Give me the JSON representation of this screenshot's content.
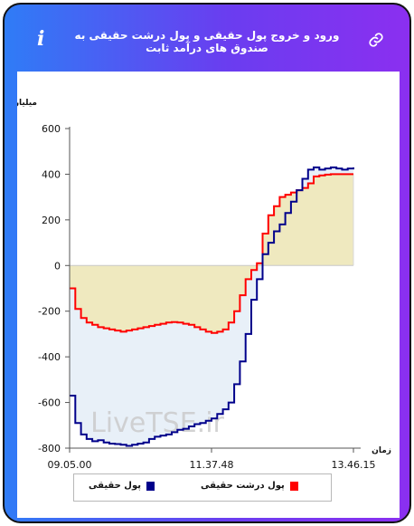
{
  "header": {
    "title": "ورود و خروج پول حقیقی و پول درشت حقیقی به صندوق های درآمد ثابت",
    "info_glyph": "i"
  },
  "icons": {
    "info": "info-icon",
    "link": "link-icon"
  },
  "colors": {
    "header_gradient_start": "#2f7cf6",
    "header_gradient_end": "#8b2ff0",
    "series_real_money": "#00008b",
    "series_big_real_money": "#ff0000",
    "fill_negative": "#e8f0f8",
    "fill_positive": "#efe9bf"
  },
  "watermark": "LiveTSE.ir",
  "chart_data": {
    "type": "line",
    "title": "ورود و خروج پول حقیقی و پول درشت حقیقی به صندوق های درآمد ثابت",
    "ylabel": "میلیارد تومان",
    "xlabel": "زمان",
    "ylim": [
      -800,
      600
    ],
    "yticks": [
      600,
      400,
      200,
      0,
      -200,
      -400,
      -600,
      -800
    ],
    "xticks": [
      "09.05.00",
      "11.37.48",
      "13.46.15"
    ],
    "grid": false,
    "legend_position": "bottom",
    "x_index_count": 51,
    "series": [
      {
        "name": "پول حقیقی",
        "color": "#00008b",
        "x": [
          0,
          1,
          2,
          3,
          4,
          5,
          6,
          7,
          8,
          9,
          10,
          11,
          12,
          13,
          14,
          15,
          16,
          17,
          18,
          19,
          20,
          21,
          22,
          23,
          24,
          25,
          26,
          27,
          28,
          29,
          30,
          31,
          32,
          33,
          34,
          35,
          36,
          37,
          38,
          39,
          40,
          41,
          42,
          43,
          44,
          45,
          46,
          47,
          48,
          49,
          50
        ],
        "values": [
          -570,
          -690,
          -740,
          -760,
          -770,
          -765,
          -775,
          -780,
          -782,
          -785,
          -790,
          -785,
          -780,
          -775,
          -760,
          -750,
          -745,
          -740,
          -730,
          -720,
          -715,
          -705,
          -695,
          -690,
          -680,
          -670,
          -650,
          -630,
          -600,
          -520,
          -420,
          -300,
          -150,
          -60,
          50,
          100,
          150,
          180,
          230,
          280,
          330,
          380,
          420,
          430,
          420,
          425,
          430,
          425,
          420,
          425,
          430
        ]
      },
      {
        "name": "پول درشت حقیقی",
        "color": "#ff0000",
        "x": [
          0,
          1,
          2,
          3,
          4,
          5,
          6,
          7,
          8,
          9,
          10,
          11,
          12,
          13,
          14,
          15,
          16,
          17,
          18,
          19,
          20,
          21,
          22,
          23,
          24,
          25,
          26,
          27,
          28,
          29,
          30,
          31,
          32,
          33,
          34,
          35,
          36,
          37,
          38,
          39,
          40,
          41,
          42,
          43,
          44,
          45,
          46,
          47,
          48,
          49,
          50
        ],
        "values": [
          -100,
          -190,
          -230,
          -250,
          -260,
          -270,
          -275,
          -280,
          -285,
          -290,
          -285,
          -280,
          -275,
          -270,
          -265,
          -260,
          -255,
          -250,
          -248,
          -250,
          -255,
          -260,
          -270,
          -280,
          -290,
          -295,
          -290,
          -280,
          -250,
          -200,
          -130,
          -60,
          -20,
          10,
          140,
          220,
          260,
          300,
          310,
          320,
          330,
          340,
          360,
          390,
          395,
          398,
          400,
          400,
          400,
          400,
          400
        ]
      }
    ]
  },
  "legend": {
    "items": [
      {
        "label": "پول حقیقی",
        "color": "#00008b"
      },
      {
        "label": "پول درشت حقیقی",
        "color": "#ff0000"
      }
    ]
  }
}
